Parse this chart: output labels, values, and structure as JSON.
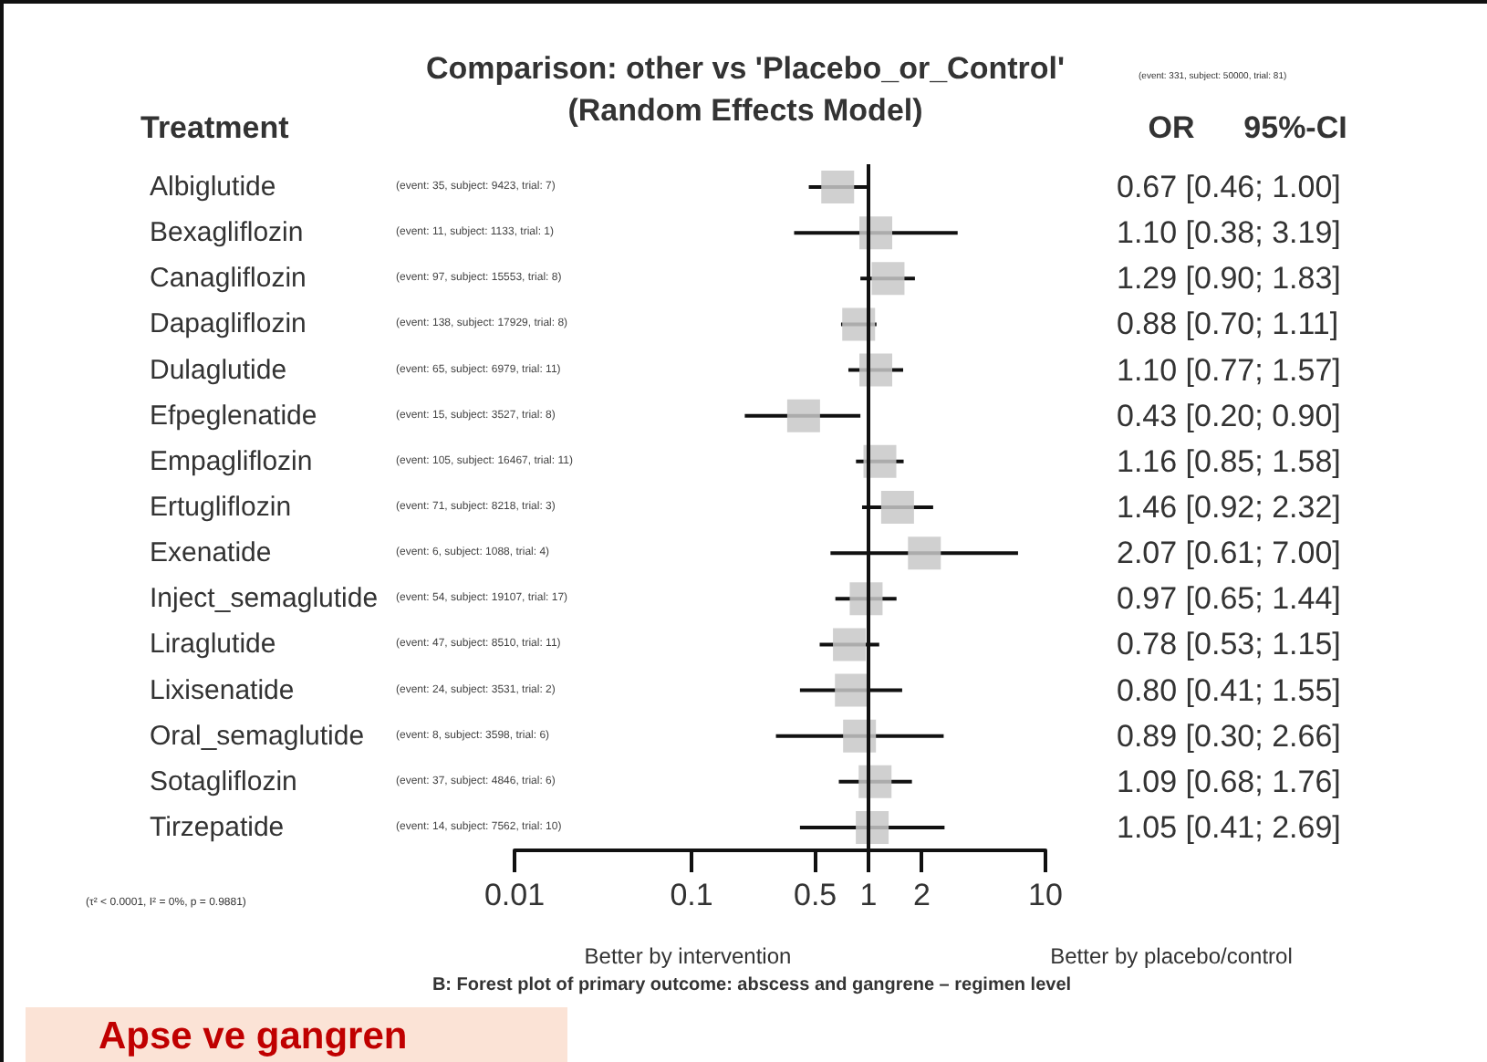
{
  "chart_data": {
    "type": "scatter",
    "title": "Comparison: other vs 'Placebo_or_Control'",
    "subtitle": "(Random Effects Model)",
    "categories": [
      "Albiglutide",
      "Bexagliflozin",
      "Canagliflozin",
      "Dapagliflozin",
      "Dulaglutide",
      "Efpeglenatide",
      "Empagliflozin",
      "Ertugliflozin",
      "Exenatide",
      "Inject_semaglutide",
      "Liraglutide",
      "Lixisenatide",
      "Oral_semaglutide",
      "Sotagliflozin",
      "Tirzepatide"
    ],
    "values": [
      0.67,
      1.1,
      1.29,
      0.88,
      1.1,
      0.43,
      1.16,
      1.46,
      2.07,
      0.97,
      0.78,
      0.8,
      0.89,
      1.09,
      1.05
    ],
    "errors": [
      [
        0.46,
        1.0
      ],
      [
        0.38,
        3.19
      ],
      [
        0.9,
        1.83
      ],
      [
        0.7,
        1.11
      ],
      [
        0.77,
        1.57
      ],
      [
        0.2,
        0.9
      ],
      [
        0.85,
        1.58
      ],
      [
        0.92,
        2.32
      ],
      [
        0.61,
        7.0
      ],
      [
        0.65,
        1.44
      ],
      [
        0.53,
        1.15
      ],
      [
        0.41,
        1.55
      ],
      [
        0.3,
        2.66
      ],
      [
        0.68,
        1.76
      ],
      [
        0.41,
        2.69
      ]
    ],
    "value_labels": [
      "0.67 [0.46; 1.00]",
      "1.10 [0.38; 3.19]",
      "1.29 [0.90; 1.83]",
      "0.88 [0.70; 1.11]",
      "1.10 [0.77; 1.57]",
      "0.43 [0.20; 0.90]",
      "1.16 [0.85; 1.58]",
      "1.46 [0.92; 2.32]",
      "2.07 [0.61; 7.00]",
      "0.97 [0.65; 1.44]",
      "0.78 [0.53; 1.15]",
      "0.80 [0.41; 1.55]",
      "0.89 [0.30; 2.66]",
      "1.09 [0.68; 1.76]",
      "1.05 [0.41; 2.69]"
    ],
    "color": "#c8c8c8",
    "marker": "square",
    "log": "x",
    "xlim": [
      0.01,
      10
    ],
    "xticks": [
      0.01,
      0.1,
      0.5,
      1,
      2,
      10
    ],
    "grid": false,
    "orientation": "horizontal",
    "ref_lines": [
      {
        "axis": "x",
        "value": 1,
        "label": null
      }
    ],
    "annotations": [
      "Treatment",
      "OR",
      "95%-CI",
      "(event: 331, subject: 50000, trial: 81)",
      "(τ² < 0.0001, I² = 0%, p = 0.9881)",
      "Better by intervention",
      "Better by placebo/control",
      "B: Forest plot of primary outcome: abscess and gangrene – regimen level",
      "Apse ve gangren",
      "(event: 35, subject: 9423, trial: 7)",
      "(event: 11, subject: 1133, trial: 1)",
      "(event: 97, subject: 15553, trial: 8)",
      "(event: 138, subject: 17929, trial: 8)",
      "(event: 65, subject: 6979, trial: 11)",
      "(event: 15, subject: 3527, trial: 8)",
      "(event: 105, subject: 16467, trial: 11)",
      "(event: 71, subject: 8218, trial: 3)",
      "(event: 6, subject: 1088, trial: 4)",
      "(event: 54, subject: 19107, trial: 17)",
      "(event: 47, subject: 8510, trial: 11)",
      "(event: 24, subject: 3531, trial: 2)",
      "(event: 8, subject: 3598, trial: 6)",
      "(event: 37, subject: 4846, trial: 6)",
      "(event: 14, subject: 7562, trial: 10)"
    ]
  }
}
